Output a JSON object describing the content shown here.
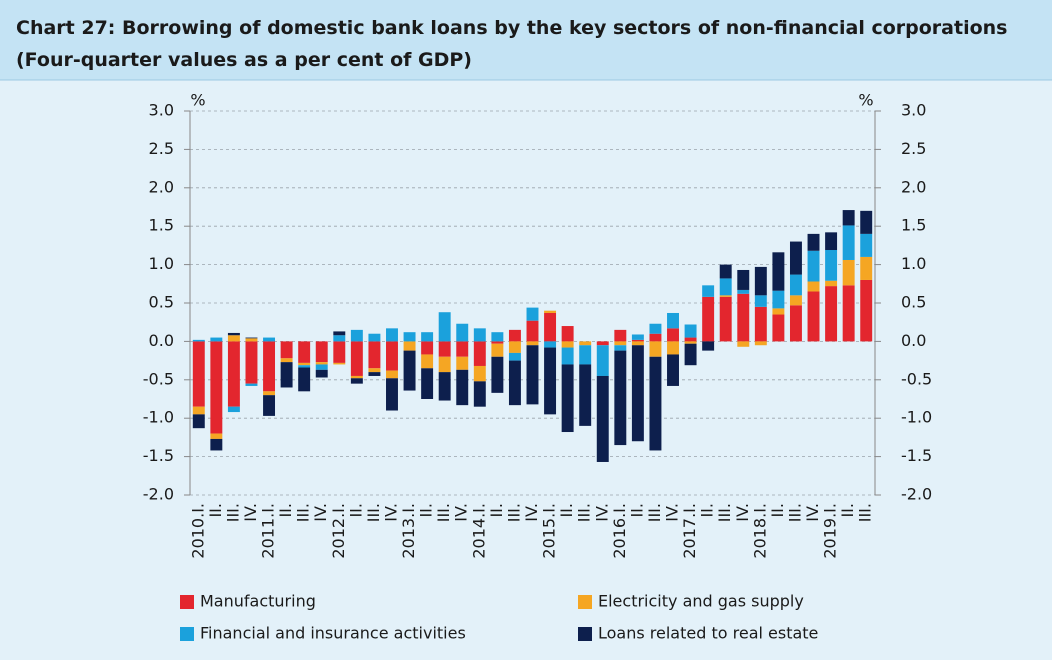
{
  "chart_data": {
    "type": "bar",
    "stacked": true,
    "title": "Chart 27: Borrowing of domestic bank loans by the key sectors of non-financial corporations",
    "subtitle": "(Four-quarter values as a per cent of GDP)",
    "y_unit": "%",
    "y2_unit": "%",
    "categories": [
      "2010.I.",
      "II.",
      "III.",
      "IV.",
      "2011.I.",
      "II.",
      "III.",
      "IV.",
      "2012.I.",
      "II.",
      "III.",
      "IV.",
      "2013.I.",
      "II.",
      "III.",
      "IV.",
      "2014.I.",
      "II.",
      "III.",
      "IV.",
      "2015.I.",
      "II.",
      "III.",
      "IV.",
      "2016.I.",
      "II.",
      "III.",
      "IV.",
      "2017.I.",
      "II.",
      "III.",
      "IV.",
      "2018.I.",
      "II.",
      "III.",
      "IV.",
      "2019.I.",
      "II.",
      "III."
    ],
    "series": [
      {
        "name": "Manufacturing",
        "color": "#e3262e",
        "values": [
          -0.85,
          -1.2,
          -0.85,
          -0.55,
          -0.65,
          -0.22,
          -0.28,
          -0.27,
          -0.28,
          -0.45,
          -0.35,
          -0.38,
          0,
          -0.17,
          -0.2,
          -0.2,
          -0.32,
          -0.03,
          0.15,
          0.27,
          0.37,
          0.2,
          0,
          -0.05,
          0.15,
          0.02,
          0.1,
          0.17,
          0.05,
          0.58,
          0.58,
          0.62,
          0.45,
          0.35,
          0.47,
          0.65,
          0.72,
          0.73,
          0.8
        ]
      },
      {
        "name": "Electricity and gas supply",
        "color": "#f5a623",
        "values": [
          -0.1,
          -0.07,
          0.08,
          0.04,
          -0.05,
          -0.05,
          -0.03,
          -0.03,
          -0.02,
          -0.03,
          -0.05,
          -0.1,
          -0.12,
          -0.18,
          -0.2,
          -0.17,
          -0.2,
          -0.17,
          -0.15,
          -0.05,
          0.03,
          -0.08,
          -0.05,
          0,
          -0.05,
          -0.05,
          -0.2,
          -0.17,
          -0.03,
          0,
          0.02,
          -0.07,
          -0.05,
          0.08,
          0.13,
          0.13,
          0.07,
          0.33,
          0.3
        ]
      },
      {
        "name": "Financial and insurance activities",
        "color": "#1ba1dc",
        "values": [
          0.02,
          0.05,
          -0.07,
          -0.03,
          0.05,
          0,
          -0.03,
          -0.07,
          0.08,
          0.15,
          0.1,
          0.17,
          0.12,
          0.12,
          0.38,
          0.23,
          0.17,
          0.12,
          -0.1,
          0.17,
          -0.08,
          -0.22,
          -0.25,
          -0.4,
          -0.07,
          0.07,
          0.13,
          0.2,
          0.17,
          0.15,
          0.22,
          0.05,
          0.15,
          0.23,
          0.27,
          0.4,
          0.4,
          0.45,
          0.3
        ]
      },
      {
        "name": "Loans related to real estate",
        "color": "#0d1f4d",
        "values": [
          -0.18,
          -0.15,
          0.03,
          0.01,
          -0.27,
          -0.33,
          -0.31,
          -0.1,
          0.05,
          -0.07,
          -0.05,
          -0.42,
          -0.52,
          -0.4,
          -0.37,
          -0.46,
          -0.33,
          -0.47,
          -0.58,
          -0.77,
          -0.87,
          -0.88,
          -0.8,
          -1.12,
          -1.23,
          -1.25,
          -1.22,
          -0.41,
          -0.28,
          -0.12,
          0.18,
          0.26,
          0.37,
          0.5,
          0.43,
          0.22,
          0.23,
          0.2,
          0.3
        ]
      }
    ],
    "ylim": [
      -2,
      3
    ],
    "yticks": [
      {
        "value": -2,
        "label": "-2.0"
      },
      {
        "value": -1.5,
        "label": "-1.5"
      },
      {
        "value": -1,
        "label": "-1.0"
      },
      {
        "value": -0.5,
        "label": "-0.5"
      },
      {
        "value": 0,
        "label": "0.0"
      },
      {
        "value": 0.5,
        "label": "0.5"
      },
      {
        "value": 1,
        "label": "1.0"
      },
      {
        "value": 1.5,
        "label": "1.5"
      },
      {
        "value": 2,
        "label": "2.0"
      },
      {
        "value": 2.5,
        "label": "2.5"
      },
      {
        "value": 3,
        "label": "3.0"
      }
    ],
    "y2lim": [
      -2,
      3
    ],
    "y2ticks": [
      {
        "value": -2,
        "label": "-2.0"
      },
      {
        "value": -1.5,
        "label": "-1.5"
      },
      {
        "value": -1,
        "label": "-1.0"
      },
      {
        "value": -0.5,
        "label": "-0.5"
      },
      {
        "value": 0,
        "label": "0.0"
      },
      {
        "value": 0.5,
        "label": "0.5"
      },
      {
        "value": 1,
        "label": "1.0"
      },
      {
        "value": 1.5,
        "label": "1.5"
      },
      {
        "value": 2,
        "label": "2.0"
      },
      {
        "value": 2.5,
        "label": "2.5"
      },
      {
        "value": 3,
        "label": "3.0"
      }
    ],
    "grid": true,
    "legend": "bottom"
  }
}
